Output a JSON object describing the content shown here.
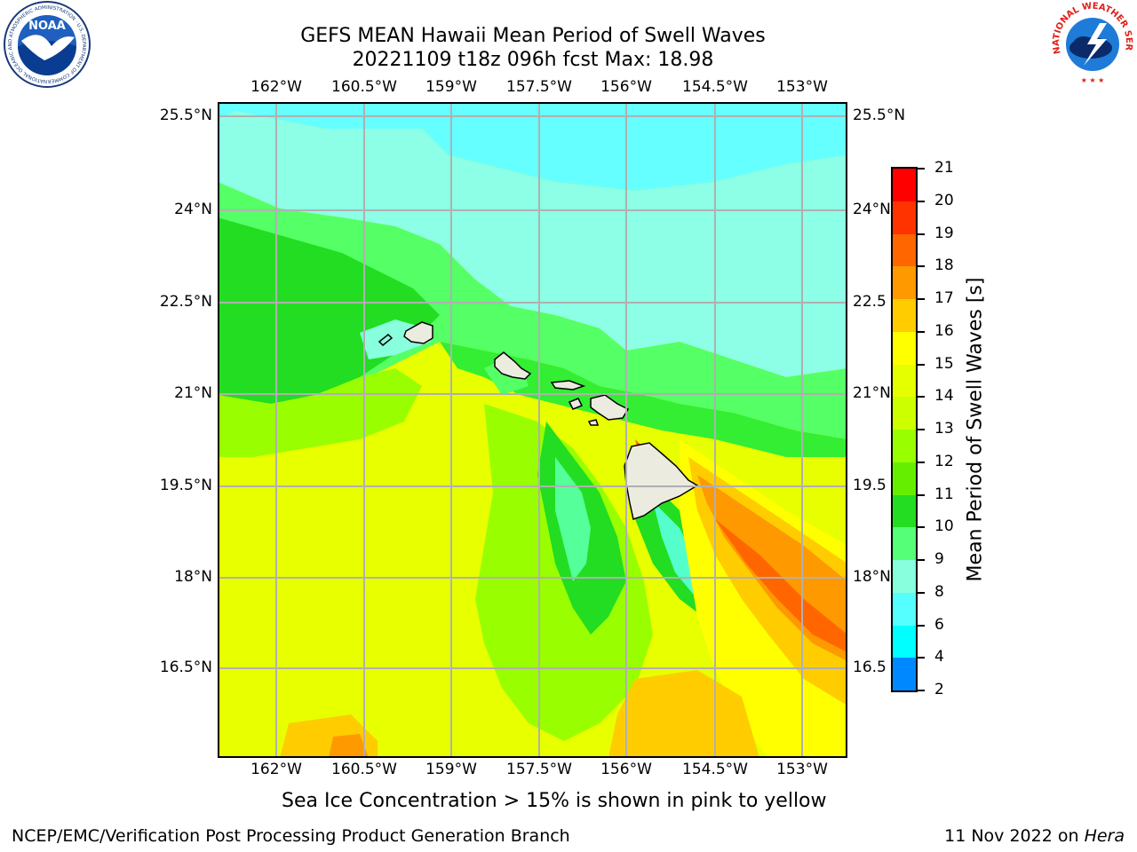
{
  "header": {
    "title_line1": "GEFS MEAN Hawaii Mean Period of Swell Waves",
    "title_line2": "20221109 t18z 096h fcst   Max: 18.98"
  },
  "map": {
    "lon_labels": [
      "162°W",
      "160.5°W",
      "159°W",
      "157.5°W",
      "156°W",
      "154.5°W",
      "153°W"
    ],
    "lat_labels": [
      "25.5°N",
      "24°N",
      "22.5°N",
      "21°N",
      "19.5°N",
      "18°N",
      "16.5°N"
    ],
    "lat_labels_right": [
      "25.5°N",
      "24°N",
      "22.5",
      "21°N",
      "19.5",
      "18°N",
      "16.5"
    ],
    "land_color": "#ecebdf",
    "grid_color": "#b0b0b0"
  },
  "colorbar": {
    "label": "Mean Period of Swell Waves [s]",
    "ticks": [
      "21",
      "20",
      "19",
      "18",
      "17",
      "16",
      "15",
      "14",
      "13",
      "12",
      "11",
      "10",
      "9",
      "8",
      "6",
      "4",
      "2"
    ],
    "colors": [
      "#ff0000",
      "#ff3300",
      "#ff6600",
      "#ff9900",
      "#ffcc00",
      "#ffff00",
      "#e6ff00",
      "#ccff00",
      "#99ff00",
      "#66ee00",
      "#22dd22",
      "#55ff77",
      "#88ffdd",
      "#55ffff",
      "#00ffff",
      "#0088ff",
      "#0000ff"
    ]
  },
  "caption": "Sea Ice Concentration > 15% is shown in pink to yellow",
  "footer": {
    "left": "NCEP/EMC/Verification Post Processing Product Generation Branch",
    "right_prefix": "11 Nov 2022 on ",
    "right_host": "Hera"
  },
  "logos": {
    "noaa_text": "NOAA",
    "noaa_ring": "NATIONAL OCEANIC AND ATMOSPHERIC ADMINISTRATION · U.S. DEPARTMENT OF COMMERCE",
    "nws_ring": "NATIONAL WEATHER SERVICE"
  }
}
